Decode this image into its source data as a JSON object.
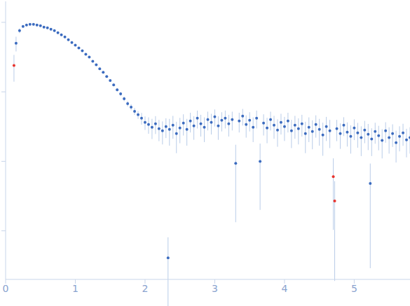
{
  "chart_data": {
    "type": "scatter",
    "log": "y",
    "tick_labels": "x",
    "grid": false,
    "xlim": [
      0,
      5.8
    ],
    "xticks": [
      0,
      1,
      2,
      3,
      4,
      5
    ],
    "ylim": [
      0.0002,
      2
    ],
    "yticks": [
      0.001,
      0.01,
      0.1,
      1
    ],
    "marker": "circle",
    "error_color": "#b9cce8",
    "x": [
      0.12,
      0.15,
      0.2,
      0.25,
      0.3,
      0.35,
      0.4,
      0.45,
      0.5,
      0.55,
      0.6,
      0.65,
      0.7,
      0.75,
      0.8,
      0.85,
      0.9,
      0.95,
      1,
      1.05,
      1.1,
      1.15,
      1.2,
      1.25,
      1.3,
      1.35,
      1.4,
      1.45,
      1.5,
      1.55,
      1.6,
      1.65,
      1.7,
      1.75,
      1.8,
      1.85,
      1.9,
      1.95,
      2,
      2.05,
      2.1,
      2.15,
      2.2,
      2.25,
      2.3,
      2.33,
      2.35,
      2.4,
      2.45,
      2.5,
      2.55,
      2.6,
      2.65,
      2.7,
      2.75,
      2.8,
      2.85,
      2.9,
      2.95,
      3,
      3.05,
      3.1,
      3.15,
      3.2,
      3.25,
      3.3,
      3.35,
      3.4,
      3.45,
      3.5,
      3.55,
      3.6,
      3.65,
      3.7,
      3.75,
      3.8,
      3.85,
      3.9,
      3.95,
      4,
      4.05,
      4.1,
      4.15,
      4.2,
      4.25,
      4.3,
      4.35,
      4.4,
      4.45,
      4.5,
      4.55,
      4.6,
      4.65,
      4.7,
      4.72,
      4.75,
      4.8,
      4.85,
      4.9,
      4.95,
      5,
      5.05,
      5.1,
      5.15,
      5.2,
      5.23,
      5.25,
      5.3,
      5.35,
      5.4,
      5.45,
      5.5,
      5.55,
      5.6,
      5.65,
      5.7,
      5.75,
      5.8
    ],
    "values": [
      0.24,
      0.501,
      0.759,
      0.871,
      0.912,
      0.933,
      0.933,
      0.912,
      0.891,
      0.851,
      0.832,
      0.794,
      0.759,
      0.708,
      0.661,
      0.617,
      0.562,
      0.513,
      0.468,
      0.427,
      0.389,
      0.347,
      0.316,
      0.275,
      0.245,
      0.214,
      0.191,
      0.166,
      0.145,
      0.126,
      0.107,
      0.0933,
      0.0794,
      0.0676,
      0.0603,
      0.0525,
      0.0468,
      0.0417,
      0.0363,
      0.0339,
      0.0309,
      0.0347,
      0.0295,
      0.0275,
      0.0316,
      0.000407,
      0.0288,
      0.0331,
      0.0251,
      0.0302,
      0.0355,
      0.0288,
      0.038,
      0.0324,
      0.0417,
      0.0347,
      0.0309,
      0.0398,
      0.0363,
      0.0437,
      0.0324,
      0.0389,
      0.0417,
      0.0347,
      0.0398,
      0.00933,
      0.038,
      0.0447,
      0.0339,
      0.0389,
      0.0309,
      0.0417,
      0.01,
      0.0355,
      0.0302,
      0.0398,
      0.0331,
      0.0282,
      0.0363,
      0.0316,
      0.038,
      0.0275,
      0.0331,
      0.0295,
      0.0347,
      0.0251,
      0.0309,
      0.0269,
      0.0339,
      0.0288,
      0.024,
      0.0316,
      0.0275,
      0.00603,
      0.00269,
      0.0295,
      0.0251,
      0.0331,
      0.0263,
      0.0229,
      0.0302,
      0.0257,
      0.0219,
      0.0282,
      0.0245,
      0.00479,
      0.0209,
      0.0269,
      0.0234,
      0.02,
      0.0275,
      0.0219,
      0.0251,
      0.0186,
      0.0229,
      0.0257,
      0.0204,
      0.0219
    ],
    "errors": [
      0.1,
      0.12,
      0.06,
      0.03,
      0.02,
      0.02,
      0.02,
      0.02,
      0.02,
      0.02,
      0.02,
      0.02,
      0.02,
      0.015,
      0.015,
      0.015,
      0.012,
      0.012,
      0.01,
      0.01,
      0.009,
      0.008,
      0.007,
      0.006,
      0.006,
      0.005,
      0.005,
      0.004,
      0.004,
      0.006,
      0.006,
      0.006,
      0.006,
      0.006,
      0.006,
      0.006,
      0.006,
      0.008,
      0.008,
      0.009,
      0.01,
      0.01,
      0.01,
      0.01,
      0.01,
      0.0004,
      0.012,
      0.012,
      0.012,
      0.012,
      0.012,
      0.012,
      0.012,
      0.012,
      0.012,
      0.012,
      0.012,
      0.012,
      0.012,
      0.012,
      0.012,
      0.012,
      0.012,
      0.012,
      0.012,
      0.008,
      0.012,
      0.012,
      0.012,
      0.012,
      0.012,
      0.012,
      0.008,
      0.012,
      0.012,
      0.012,
      0.012,
      0.012,
      0.012,
      0.012,
      0.012,
      0.012,
      0.012,
      0.012,
      0.012,
      0.012,
      0.012,
      0.012,
      0.012,
      0.012,
      0.012,
      0.012,
      0.012,
      0.005,
      0.0025,
      0.01,
      0.01,
      0.01,
      0.01,
      0.01,
      0.01,
      0.01,
      0.01,
      0.01,
      0.01,
      0.0045,
      0.009,
      0.009,
      0.009,
      0.009,
      0.009,
      0.009,
      0.009,
      0.009,
      0.009,
      0.009,
      0.009,
      0.009
    ],
    "colors": [
      "#e8332c",
      "#3b6bbf",
      "#3b6bbf",
      "#3b6bbf",
      "#3b6bbf",
      "#3b6bbf",
      "#3b6bbf",
      "#3b6bbf",
      "#3b6bbf",
      "#3b6bbf",
      "#3b6bbf",
      "#3b6bbf",
      "#3b6bbf",
      "#3b6bbf",
      "#3b6bbf",
      "#3b6bbf",
      "#3b6bbf",
      "#3b6bbf",
      "#3b6bbf",
      "#3b6bbf",
      "#3b6bbf",
      "#3b6bbf",
      "#3b6bbf",
      "#3b6bbf",
      "#3b6bbf",
      "#3b6bbf",
      "#3b6bbf",
      "#3b6bbf",
      "#3b6bbf",
      "#3b6bbf",
      "#3b6bbf",
      "#3b6bbf",
      "#3b6bbf",
      "#3b6bbf",
      "#3b6bbf",
      "#3b6bbf",
      "#3b6bbf",
      "#3b6bbf",
      "#3b6bbf",
      "#3b6bbf",
      "#3b6bbf",
      "#3b6bbf",
      "#3b6bbf",
      "#3b6bbf",
      "#3b6bbf",
      "#3b6bbf",
      "#3b6bbf",
      "#3b6bbf",
      "#3b6bbf",
      "#3b6bbf",
      "#3b6bbf",
      "#3b6bbf",
      "#3b6bbf",
      "#3b6bbf",
      "#3b6bbf",
      "#3b6bbf",
      "#3b6bbf",
      "#3b6bbf",
      "#3b6bbf",
      "#3b6bbf",
      "#3b6bbf",
      "#3b6bbf",
      "#3b6bbf",
      "#3b6bbf",
      "#3b6bbf",
      "#3b6bbf",
      "#3b6bbf",
      "#3b6bbf",
      "#3b6bbf",
      "#3b6bbf",
      "#3b6bbf",
      "#3b6bbf",
      "#3b6bbf",
      "#3b6bbf",
      "#3b6bbf",
      "#3b6bbf",
      "#3b6bbf",
      "#3b6bbf",
      "#3b6bbf",
      "#3b6bbf",
      "#3b6bbf",
      "#3b6bbf",
      "#3b6bbf",
      "#3b6bbf",
      "#3b6bbf",
      "#3b6bbf",
      "#3b6bbf",
      "#3b6bbf",
      "#3b6bbf",
      "#3b6bbf",
      "#3b6bbf",
      "#3b6bbf",
      "#3b6bbf",
      "#e8332c",
      "#e8332c",
      "#3b6bbf",
      "#3b6bbf",
      "#3b6bbf",
      "#3b6bbf",
      "#3b6bbf",
      "#3b6bbf",
      "#3b6bbf",
      "#3b6bbf",
      "#3b6bbf",
      "#3b6bbf",
      "#3b6bbf",
      "#3b6bbf",
      "#3b6bbf",
      "#3b6bbf",
      "#3b6bbf",
      "#3b6bbf",
      "#3b6bbf",
      "#3b6bbf",
      "#3b6bbf",
      "#3b6bbf",
      "#3b6bbf",
      "#3b6bbf",
      "#3b6bbf"
    ]
  }
}
